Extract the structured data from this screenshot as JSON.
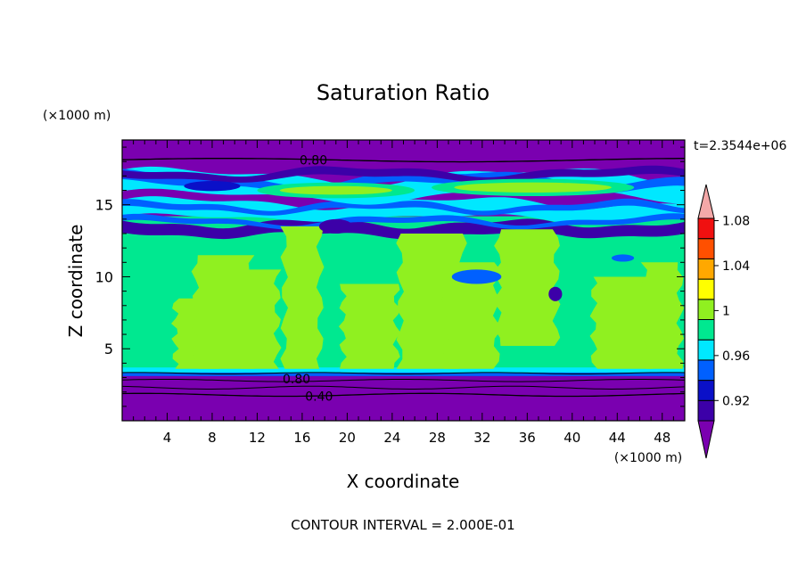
{
  "chart_data": {
    "type": "heatmap",
    "title": "Saturation Ratio",
    "xlabel": "X coordinate",
    "ylabel": "Z coordinate",
    "x_unit": "(×1000 m)",
    "y_unit": "(×1000 m)",
    "time_label": "t=2.3544e+06",
    "footer": "CONTOUR INTERVAL = 2.000E-01",
    "xlim": [
      0,
      50
    ],
    "ylim": [
      0,
      19.5
    ],
    "x_ticks": [
      4,
      8,
      12,
      16,
      20,
      24,
      28,
      32,
      36,
      40,
      44,
      48
    ],
    "y_ticks": [
      5,
      10,
      15
    ],
    "contour_labels": [
      {
        "text": "0.80",
        "x": 17,
        "z": 18.1
      },
      {
        "text": "0.80",
        "x": 15.5,
        "z": 2.9
      },
      {
        "text": "0.40",
        "x": 17.5,
        "z": 1.7
      }
    ],
    "colorbar": {
      "labels": [
        "1.08",
        "1.04",
        "1",
        "0.96",
        "0.92"
      ],
      "levels": [
        0.92,
        0.94,
        0.96,
        0.98,
        1.0,
        1.02,
        1.04,
        1.06,
        1.08,
        1.1
      ],
      "colors": [
        "#7a00b0",
        "#3c00a8",
        "#0a10c8",
        "#0060ff",
        "#00e8ff",
        "#00e890",
        "#90f020",
        "#ffff00",
        "#ffa800",
        "#ff5000",
        "#f01010",
        "#f4a8a8"
      ]
    },
    "field_colors": {
      "purple": "#7a00b0",
      "indigo": "#3c00a8",
      "darkblue": "#0a10c8",
      "blue": "#0060ff",
      "cyan": "#00e8ff",
      "green": "#00e890",
      "lime": "#90f020"
    }
  }
}
